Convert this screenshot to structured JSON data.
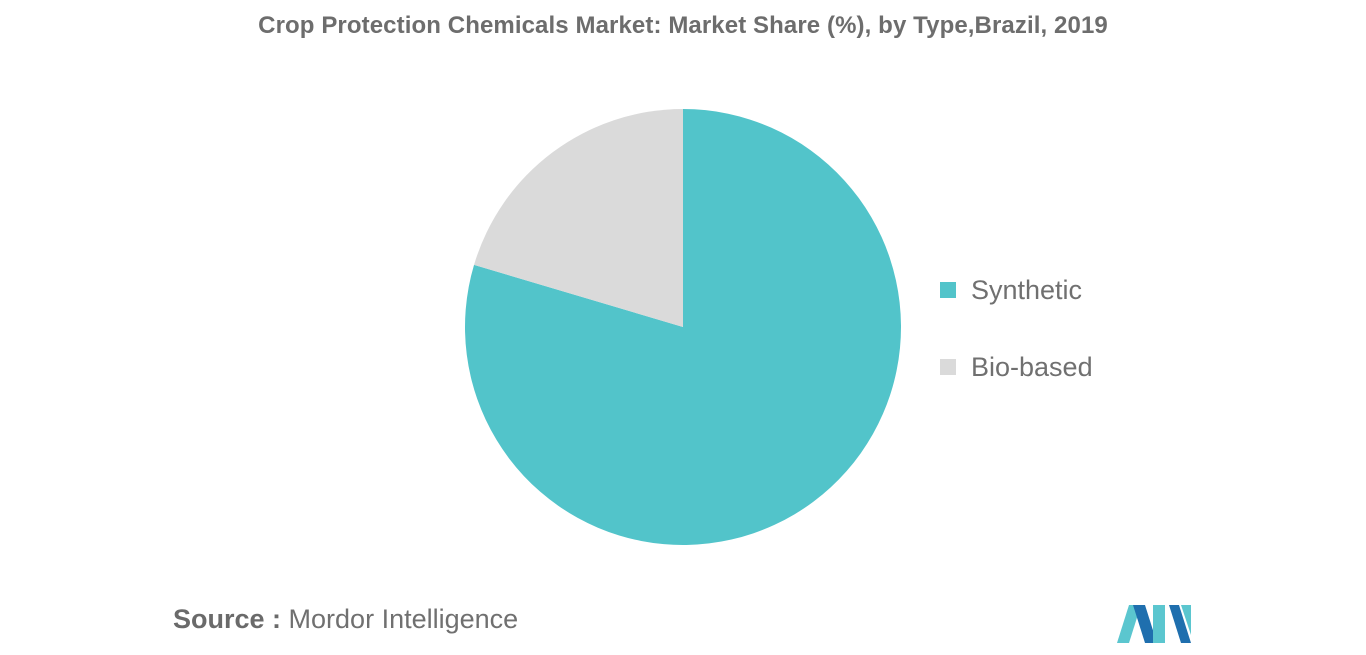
{
  "chart_data": {
    "type": "pie",
    "title": "Crop Protection Chemicals Market: Market Share (%), by Type,Brazil, 2019",
    "slices": [
      {
        "label": "Synthetic",
        "value": 79.6,
        "color": "#52c4ca"
      },
      {
        "label": "Bio-based",
        "value": 20.4,
        "color": "#dadada"
      }
    ],
    "start_angle_deg": 0,
    "direction": "clockwise",
    "legend_position": "right"
  },
  "legend": {
    "items": [
      {
        "label": "Synthetic",
        "color": "#52c4ca"
      },
      {
        "label": "Bio-based",
        "color": "#dadada"
      }
    ]
  },
  "source": {
    "key": "Source :",
    "value": "Mordor Intelligence"
  },
  "logo": {
    "icon": "mordor-intelligence-logo-icon",
    "colors": [
      "#5bc6cf",
      "#1f6fae"
    ]
  }
}
